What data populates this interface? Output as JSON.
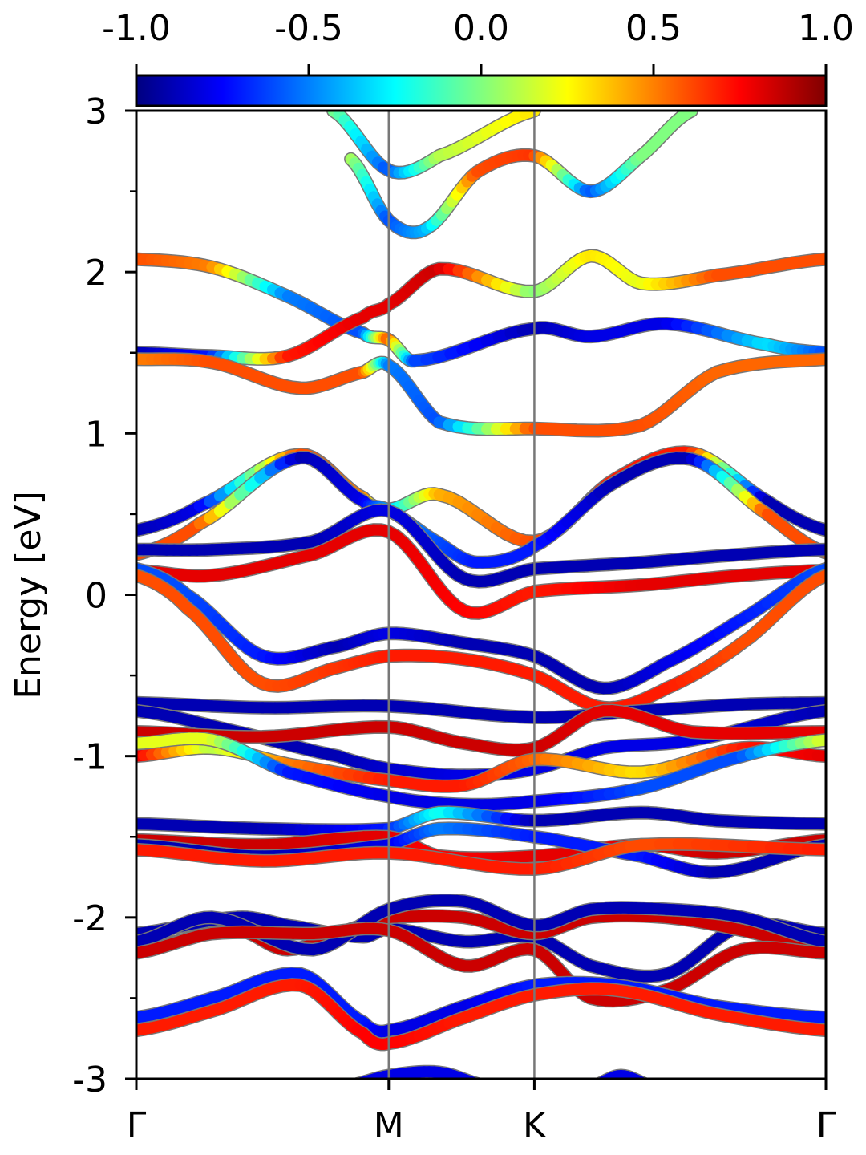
{
  "chart_data": {
    "type": "line",
    "title": "",
    "xlabel": "",
    "ylabel": "Energy [eV]",
    "ylim": [
      -3,
      3
    ],
    "yticks": [
      "-3",
      "-2",
      "-1",
      "0",
      "1",
      "2",
      "3"
    ],
    "yminor": [
      -2.5,
      -1.5,
      -0.5,
      0.5,
      1.5,
      2.5
    ],
    "kpath": {
      "labels": [
        "Γ",
        "M",
        "K",
        "Γ"
      ],
      "positions": [
        0,
        1,
        1.577,
        2.732
      ],
      "vertical_lines": [
        1,
        1.577
      ]
    },
    "colorbar": {
      "cmap": "jet",
      "range": [
        -1.0,
        1.0
      ],
      "tick_labels": [
        "-1.0",
        "-0.5",
        "0.0",
        "0.5",
        "1.0"
      ],
      "placement": "top"
    },
    "colors": {
      "jet": [
        "#000080",
        "#0000ff",
        "#0080ff",
        "#00ffff",
        "#80ff80",
        "#ffff00",
        "#ff8000",
        "#ff0000",
        "#800000"
      ],
      "band_outline": "#777777",
      "vline": "#777777",
      "axes": "#000000"
    },
    "series": [
      {
        "x": [
          0.78,
          1.0,
          1.2,
          1.577
        ],
        "y": [
          3.0,
          2.63,
          2.72,
          3.0
        ],
        "c": [
          0.0,
          -0.6,
          0.1,
          0.3
        ]
      },
      {
        "x": [
          0.85,
          1.0,
          1.15,
          1.35,
          1.577,
          1.8,
          2.0,
          2.2
        ],
        "y": [
          2.7,
          2.32,
          2.27,
          2.62,
          2.72,
          2.5,
          2.72,
          3.0
        ],
        "c": [
          0.1,
          -0.6,
          -0.4,
          0.6,
          0.65,
          -0.6,
          0.0,
          0.0
        ]
      },
      {
        "x": [
          0.0,
          0.3,
          0.6,
          0.9,
          1.0,
          1.1,
          1.577,
          1.8,
          2.1,
          2.5,
          2.732
        ],
        "y": [
          2.08,
          2.03,
          1.85,
          1.62,
          1.58,
          1.45,
          1.65,
          1.6,
          1.68,
          1.55,
          1.5
        ],
        "c": [
          0.6,
          0.5,
          -0.5,
          -0.6,
          0.6,
          -0.6,
          -0.9,
          -0.8,
          -0.8,
          -0.3,
          -0.6
        ]
      },
      {
        "x": [
          0.0,
          0.3,
          0.6,
          0.9,
          1.0,
          1.2,
          1.577,
          1.8,
          2.0,
          2.3,
          2.732
        ],
        "y": [
          1.5,
          1.48,
          1.48,
          1.72,
          1.8,
          2.02,
          1.88,
          2.1,
          1.93,
          1.98,
          2.08
        ],
        "c": [
          -0.9,
          -0.7,
          0.7,
          0.8,
          0.8,
          0.85,
          0.0,
          0.3,
          0.2,
          0.6,
          0.6
        ]
      },
      {
        "x": [
          0.0,
          0.3,
          0.65,
          0.9,
          1.0,
          1.2,
          1.577,
          2.0,
          2.3,
          2.732
        ],
        "y": [
          1.46,
          1.44,
          1.28,
          1.38,
          1.42,
          1.07,
          1.03,
          1.05,
          1.38,
          1.46
        ],
        "c": [
          0.5,
          0.6,
          0.6,
          0.6,
          -0.5,
          -0.6,
          0.6,
          0.6,
          0.55,
          0.55
        ]
      },
      {
        "x": [
          0.0,
          0.25,
          0.65,
          0.9,
          1.0,
          1.2,
          1.577,
          1.9,
          2.2,
          2.5,
          2.732
        ],
        "y": [
          0.4,
          0.55,
          0.87,
          0.6,
          0.53,
          0.62,
          0.33,
          0.72,
          0.88,
          0.58,
          0.4
        ],
        "c": [
          -0.9,
          -0.8,
          0.6,
          0.5,
          -0.4,
          0.4,
          0.6,
          0.7,
          0.7,
          -0.9,
          -0.9
        ]
      },
      {
        "x": [
          0.0,
          0.25,
          0.65,
          0.9,
          1.0,
          1.2,
          1.35,
          1.577,
          1.9,
          2.2,
          2.5,
          2.732
        ],
        "y": [
          0.25,
          0.44,
          0.85,
          0.58,
          0.52,
          0.32,
          0.2,
          0.3,
          0.7,
          0.84,
          0.5,
          0.26
        ],
        "c": [
          0.6,
          0.6,
          -0.9,
          -0.8,
          -0.4,
          -0.6,
          -0.7,
          -0.7,
          -0.9,
          -0.9,
          0.6,
          0.6
        ]
      },
      {
        "x": [
          0.0,
          0.3,
          0.7,
          1.0,
          1.3,
          1.577,
          2.0,
          2.4,
          2.732
        ],
        "y": [
          0.28,
          0.28,
          0.33,
          0.52,
          0.1,
          0.16,
          0.2,
          0.25,
          0.28
        ],
        "c": [
          -0.9,
          -0.9,
          -0.9,
          -0.8,
          -0.9,
          -0.9,
          -0.9,
          -0.9,
          -0.9
        ]
      },
      {
        "x": [
          0.0,
          0.3,
          0.7,
          1.0,
          1.3,
          1.577,
          2.0,
          2.4,
          2.732
        ],
        "y": [
          0.15,
          0.12,
          0.25,
          0.39,
          -0.1,
          0.02,
          0.06,
          0.12,
          0.15
        ],
        "c": [
          0.8,
          0.8,
          0.8,
          0.8,
          0.75,
          0.7,
          0.8,
          0.8,
          0.8
        ]
      },
      {
        "x": [
          0.0,
          0.2,
          0.5,
          0.8,
          1.0,
          1.3,
          1.577,
          1.85,
          2.1,
          2.4,
          2.732
        ],
        "y": [
          0.16,
          0.0,
          -0.38,
          -0.32,
          -0.24,
          -0.3,
          -0.38,
          -0.58,
          -0.42,
          -0.15,
          0.16
        ],
        "c": [
          -0.6,
          -0.6,
          -0.7,
          -0.9,
          -0.8,
          -0.9,
          -0.9,
          -0.9,
          -0.8,
          -0.7,
          -0.6
        ]
      },
      {
        "x": [
          0.0,
          0.2,
          0.5,
          0.8,
          1.0,
          1.3,
          1.577,
          1.85,
          2.1,
          2.4,
          2.732
        ],
        "y": [
          0.12,
          -0.08,
          -0.55,
          -0.45,
          -0.38,
          -0.4,
          -0.5,
          -0.7,
          -0.58,
          -0.3,
          0.12
        ],
        "c": [
          0.6,
          0.6,
          0.6,
          0.65,
          0.7,
          0.7,
          0.7,
          0.7,
          0.7,
          0.6,
          0.6
        ]
      },
      {
        "x": [
          0.0,
          0.5,
          1.0,
          1.577,
          2.0,
          2.4,
          2.732
        ],
        "y": [
          -0.67,
          -0.7,
          -0.69,
          -0.76,
          -0.72,
          -0.68,
          -0.67
        ],
        "c": [
          -0.9,
          -0.9,
          -0.9,
          -0.9,
          -0.9,
          -0.9,
          -0.9
        ]
      },
      {
        "x": [
          0.0,
          0.4,
          0.8,
          1.0,
          1.3,
          1.577,
          1.85,
          2.2,
          2.732
        ],
        "y": [
          -0.72,
          -0.85,
          -1.0,
          -1.08,
          -1.12,
          -1.08,
          -0.95,
          -0.9,
          -0.72
        ],
        "c": [
          -0.9,
          -0.9,
          -0.9,
          -0.85,
          -0.8,
          -0.8,
          -0.8,
          -0.8,
          -0.9
        ]
      },
      {
        "x": [
          0.0,
          0.5,
          1.0,
          1.3,
          1.577,
          1.85,
          2.2,
          2.732
        ],
        "y": [
          -0.85,
          -0.88,
          -0.82,
          -0.92,
          -0.95,
          -0.72,
          -0.85,
          -0.85
        ],
        "c": [
          0.85,
          0.85,
          0.85,
          0.85,
          0.85,
          0.8,
          0.8,
          0.8
        ]
      },
      {
        "x": [
          0.0,
          0.3,
          0.6,
          1.0,
          1.3,
          1.577,
          2.0,
          2.4,
          2.732
        ],
        "y": [
          -1.0,
          -0.95,
          -1.05,
          -1.15,
          -1.18,
          -1.02,
          -1.1,
          -0.95,
          -1.0
        ],
        "c": [
          0.8,
          0.1,
          0.5,
          0.7,
          0.7,
          0.55,
          0.3,
          0.7,
          0.8
        ]
      },
      {
        "x": [
          0.0,
          0.3,
          0.6,
          1.0,
          1.3,
          1.577,
          2.0,
          2.4,
          2.732
        ],
        "y": [
          -0.92,
          -0.9,
          -1.1,
          -1.25,
          -1.3,
          -1.28,
          -1.2,
          -1.0,
          -0.9
        ],
        "c": [
          0.2,
          0.2,
          -0.7,
          -0.8,
          -0.8,
          -0.8,
          -0.6,
          -0.6,
          0.2
        ]
      },
      {
        "x": [
          0.0,
          0.5,
          1.0,
          1.2,
          1.577,
          2.0,
          2.3,
          2.732
        ],
        "y": [
          -1.42,
          -1.45,
          -1.45,
          -1.35,
          -1.4,
          -1.35,
          -1.4,
          -1.42
        ],
        "c": [
          -0.9,
          -0.9,
          -0.7,
          -0.2,
          -0.9,
          -0.9,
          -0.9,
          -0.9
        ]
      },
      {
        "x": [
          0.0,
          0.5,
          1.0,
          1.2,
          1.577,
          2.0,
          2.3,
          2.732
        ],
        "y": [
          -1.52,
          -1.55,
          -1.5,
          -1.62,
          -1.62,
          -1.55,
          -1.6,
          -1.52
        ],
        "c": [
          0.85,
          0.85,
          0.8,
          0.75,
          0.8,
          0.8,
          0.85,
          0.85
        ]
      },
      {
        "x": [
          0.0,
          0.5,
          1.0,
          1.2,
          1.577,
          2.0,
          2.3,
          2.732
        ],
        "y": [
          -1.55,
          -1.62,
          -1.55,
          -1.45,
          -1.5,
          -1.62,
          -1.72,
          -1.55
        ],
        "c": [
          -0.9,
          -0.9,
          -0.8,
          -0.5,
          -0.7,
          -0.7,
          -0.9,
          -0.9
        ]
      },
      {
        "x": [
          0.0,
          0.5,
          1.0,
          1.577,
          2.0,
          2.732
        ],
        "y": [
          -1.58,
          -1.65,
          -1.6,
          -1.7,
          -1.55,
          -1.58
        ],
        "c": [
          0.7,
          0.7,
          0.7,
          0.7,
          0.6,
          0.7
        ]
      },
      {
        "x": [
          0.0,
          0.4,
          0.6,
          0.9,
          1.0,
          1.3,
          1.577,
          1.8,
          2.1,
          2.4,
          2.732
        ],
        "y": [
          -2.1,
          -2.0,
          -2.05,
          -2.12,
          -2.07,
          -2.15,
          -2.12,
          -2.3,
          -2.35,
          -2.05,
          -2.1
        ],
        "c": [
          -0.9,
          -0.9,
          -0.9,
          -0.9,
          -0.9,
          -0.9,
          -0.9,
          -0.9,
          -0.9,
          -0.9,
          -0.9
        ]
      },
      {
        "x": [
          0.0,
          0.4,
          0.6,
          0.9,
          1.0,
          1.3,
          1.577,
          1.8,
          2.1,
          2.4,
          2.732
        ],
        "y": [
          -2.2,
          -2.08,
          -2.2,
          -2.05,
          -2.0,
          -2.0,
          -2.1,
          -2.0,
          -2.0,
          -2.08,
          -2.2
        ],
        "c": [
          0.85,
          0.85,
          0.85,
          0.85,
          0.85,
          0.85,
          0.85,
          0.85,
          0.85,
          0.85,
          0.85
        ]
      },
      {
        "x": [
          0.0,
          0.3,
          0.7,
          1.0,
          1.3,
          1.577,
          1.8,
          2.1,
          2.4,
          2.732
        ],
        "y": [
          -2.15,
          -2.0,
          -2.2,
          -1.95,
          -1.9,
          -2.05,
          -1.95,
          -1.95,
          -2.0,
          -2.15
        ],
        "c": [
          -0.9,
          -0.9,
          -0.9,
          -0.9,
          -0.9,
          -0.9,
          -0.9,
          -0.9,
          -0.9,
          -0.9
        ]
      },
      {
        "x": [
          0.0,
          0.3,
          0.7,
          1.0,
          1.3,
          1.577,
          1.8,
          2.1,
          2.4,
          2.732
        ],
        "y": [
          -2.22,
          -2.1,
          -2.1,
          -2.08,
          -2.3,
          -2.2,
          -2.5,
          -2.45,
          -2.2,
          -2.22
        ],
        "c": [
          0.85,
          0.85,
          0.85,
          0.85,
          0.85,
          0.85,
          0.85,
          0.85,
          0.85,
          0.85
        ]
      },
      {
        "x": [
          0.0,
          0.3,
          0.65,
          0.9,
          1.0,
          1.3,
          1.577,
          1.9,
          2.3,
          2.732
        ],
        "y": [
          -2.62,
          -2.5,
          -2.35,
          -2.65,
          -2.7,
          -2.55,
          -2.42,
          -2.42,
          -2.55,
          -2.62
        ],
        "c": [
          -0.7,
          -0.7,
          -0.7,
          -0.7,
          -0.8,
          -0.8,
          -0.7,
          -0.7,
          -0.7,
          -0.7
        ]
      },
      {
        "x": [
          0.0,
          0.3,
          0.65,
          0.9,
          1.0,
          1.3,
          1.577,
          1.9,
          2.3,
          2.732
        ],
        "y": [
          -2.7,
          -2.58,
          -2.42,
          -2.72,
          -2.78,
          -2.62,
          -2.48,
          -2.45,
          -2.6,
          -2.7
        ],
        "c": [
          0.7,
          0.7,
          0.7,
          0.75,
          0.75,
          0.7,
          0.7,
          0.7,
          0.7,
          0.7
        ]
      },
      {
        "x": [
          0.82,
          1.0,
          1.2,
          1.4
        ],
        "y": [
          -3.05,
          -2.98,
          -2.96,
          -3.05
        ],
        "c": [
          -0.8,
          -0.8,
          -0.8,
          -0.8
        ]
      },
      {
        "x": [
          1.8,
          1.92,
          2.05
        ],
        "y": [
          -3.05,
          -2.98,
          -3.05
        ],
        "c": [
          -0.8,
          -0.8,
          -0.8
        ]
      }
    ]
  }
}
